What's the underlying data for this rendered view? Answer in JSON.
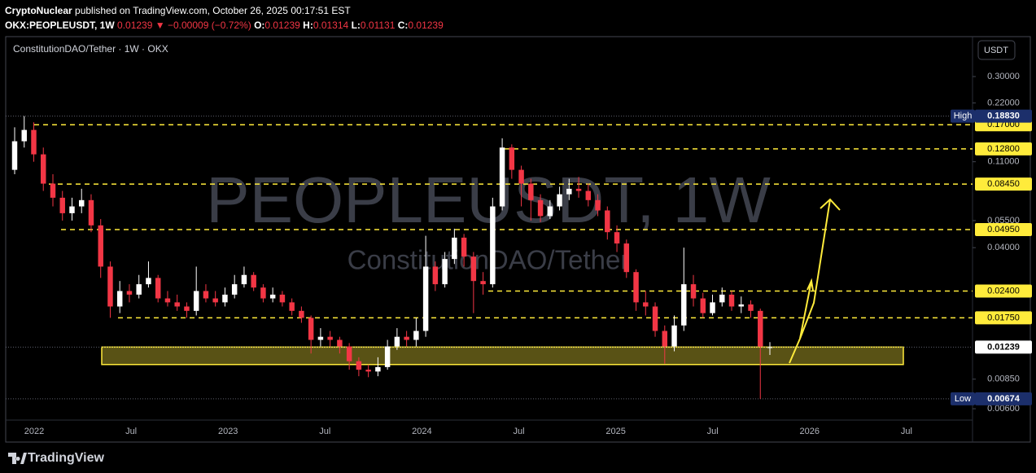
{
  "header": {
    "author": "CryptoNuclear",
    "published": "published on TradingView.com, October 26, 2025 00:17:51 EST",
    "ticker": "OKX:PEOPLEUSDT, 1W",
    "last": "0.01239",
    "change": "▼ −0.00009 (−0.72%)",
    "o_label": "O:",
    "o": "0.01239",
    "h_label": "H:",
    "h": "0.01314",
    "l_label": "L:",
    "l": "0.01131",
    "c_label": "C:",
    "c": "0.01239"
  },
  "footer": {
    "brand": "TradingView"
  },
  "chart_data": {
    "type": "candlestick",
    "title": "ConstitutionDAO/Tether · 1W · OKX",
    "watermark": "PEOPLEUSDT, 1W",
    "watermark_subtitle": "ConstitutionDAO/Tether",
    "currency": "USDT",
    "log_scale": true,
    "ylim": [
      0.0053,
      0.48
    ],
    "yticks": [
      {
        "value": 0.3,
        "label": "0.30000"
      },
      {
        "value": 0.22,
        "label": "0.22000"
      },
      {
        "value": 0.11,
        "label": "0.11000"
      },
      {
        "value": 0.055,
        "label": "0.05500"
      },
      {
        "value": 0.04,
        "label": "0.04000"
      },
      {
        "value": 0.0085,
        "label": "0.00850"
      },
      {
        "value": 0.006,
        "label": "0.00600"
      }
    ],
    "xtick_labels": [
      "2022",
      "Jul",
      "2023",
      "Jul",
      "2024",
      "Jul",
      "2025",
      "Jul",
      "2026",
      "Jul"
    ],
    "up_color": "#ffffff",
    "down_color": "#f23645",
    "open": [
      0.1,
      0.14,
      0.16,
      0.12,
      0.085,
      0.072,
      0.06,
      0.065,
      0.07,
      0.052,
      0.032,
      0.02,
      0.024,
      0.023,
      0.026,
      0.028,
      0.022,
      0.021,
      0.02,
      0.019,
      0.024,
      0.022,
      0.021,
      0.023,
      0.026,
      0.029,
      0.025,
      0.022,
      0.023,
      0.021,
      0.019,
      0.0175,
      0.0135,
      0.014,
      0.0135,
      0.0125,
      0.0105,
      0.0095,
      0.0093,
      0.0098,
      0.0125,
      0.014,
      0.0135,
      0.015,
      0.032,
      0.026,
      0.035,
      0.045,
      0.036,
      0.027,
      0.026,
      0.065,
      0.13,
      0.1,
      0.085,
      0.07,
      0.058,
      0.065,
      0.075,
      0.08,
      0.078,
      0.07,
      0.062,
      0.048,
      0.042,
      0.03,
      0.021,
      0.02,
      0.015,
      0.0125,
      0.016,
      0.026,
      0.022,
      0.0185,
      0.021,
      0.023,
      0.02,
      0.0205,
      0.019,
      0.01239
    ],
    "high": [
      0.165,
      0.1883,
      0.175,
      0.13,
      0.095,
      0.078,
      0.072,
      0.08,
      0.075,
      0.056,
      0.034,
      0.027,
      0.026,
      0.029,
      0.034,
      0.029,
      0.024,
      0.023,
      0.021,
      0.032,
      0.026,
      0.024,
      0.025,
      0.029,
      0.032,
      0.03,
      0.026,
      0.025,
      0.024,
      0.022,
      0.02,
      0.018,
      0.0155,
      0.015,
      0.014,
      0.013,
      0.011,
      0.0101,
      0.011,
      0.0135,
      0.0155,
      0.015,
      0.0175,
      0.046,
      0.034,
      0.038,
      0.05,
      0.047,
      0.038,
      0.03,
      0.072,
      0.145,
      0.135,
      0.105,
      0.09,
      0.075,
      0.07,
      0.082,
      0.09,
      0.092,
      0.085,
      0.075,
      0.065,
      0.052,
      0.044,
      0.031,
      0.024,
      0.021,
      0.016,
      0.018,
      0.04,
      0.029,
      0.0235,
      0.023,
      0.025,
      0.024,
      0.0225,
      0.0215,
      0.0195,
      0.01314
    ],
    "low": [
      0.095,
      0.13,
      0.11,
      0.078,
      0.065,
      0.055,
      0.055,
      0.06,
      0.048,
      0.028,
      0.0175,
      0.0185,
      0.021,
      0.022,
      0.025,
      0.021,
      0.02,
      0.019,
      0.0175,
      0.018,
      0.021,
      0.02,
      0.02,
      0.022,
      0.025,
      0.024,
      0.021,
      0.021,
      0.02,
      0.018,
      0.0165,
      0.0115,
      0.0125,
      0.0125,
      0.0115,
      0.0095,
      0.0088,
      0.0087,
      0.0088,
      0.0095,
      0.012,
      0.0125,
      0.0125,
      0.014,
      0.024,
      0.025,
      0.033,
      0.032,
      0.0185,
      0.023,
      0.025,
      0.062,
      0.09,
      0.065,
      0.055,
      0.054,
      0.056,
      0.062,
      0.07,
      0.072,
      0.065,
      0.058,
      0.044,
      0.038,
      0.028,
      0.019,
      0.018,
      0.014,
      0.0102,
      0.0118,
      0.015,
      0.02,
      0.0175,
      0.018,
      0.02,
      0.019,
      0.0185,
      0.0175,
      0.00674,
      0.01131
    ],
    "close": [
      0.14,
      0.16,
      0.12,
      0.085,
      0.072,
      0.06,
      0.065,
      0.07,
      0.052,
      0.032,
      0.02,
      0.024,
      0.023,
      0.026,
      0.028,
      0.022,
      0.021,
      0.02,
      0.019,
      0.024,
      0.022,
      0.021,
      0.023,
      0.026,
      0.029,
      0.025,
      0.022,
      0.023,
      0.021,
      0.019,
      0.0175,
      0.0135,
      0.014,
      0.0135,
      0.0125,
      0.0105,
      0.0095,
      0.0093,
      0.0098,
      0.0125,
      0.014,
      0.0135,
      0.015,
      0.032,
      0.026,
      0.035,
      0.045,
      0.036,
      0.027,
      0.026,
      0.065,
      0.13,
      0.1,
      0.085,
      0.07,
      0.058,
      0.065,
      0.075,
      0.08,
      0.078,
      0.07,
      0.062,
      0.048,
      0.042,
      0.03,
      0.021,
      0.02,
      0.015,
      0.0125,
      0.016,
      0.026,
      0.022,
      0.0185,
      0.021,
      0.023,
      0.02,
      0.0205,
      0.019,
      0.01248,
      0.01239
    ],
    "levels": [
      {
        "value": 0.17,
        "label": "0.17000"
      },
      {
        "value": 0.128,
        "label": "0.12800"
      },
      {
        "value": 0.0845,
        "label": "0.08450"
      },
      {
        "value": 0.0495,
        "label": "0.04950"
      },
      {
        "value": 0.024,
        "label": "0.02400"
      },
      {
        "value": 0.0175,
        "label": "0.01750"
      }
    ],
    "level_color": "#ffeb3b",
    "support_zone": [
      0.0101,
      0.0124
    ],
    "high_marker": {
      "tag": "High",
      "value": 0.1883,
      "label": "0.18830"
    },
    "low_marker": {
      "tag": "Low",
      "value": 0.00674,
      "label": "0.00674"
    },
    "last_marker": {
      "value": 0.01239,
      "label": "0.01239"
    }
  }
}
